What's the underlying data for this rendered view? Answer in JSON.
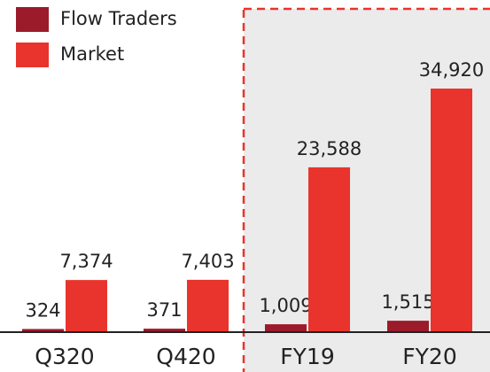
{
  "chart_data": {
    "type": "bar",
    "categories": [
      "Q320",
      "Q420",
      "FY19",
      "FY20"
    ],
    "series": [
      {
        "name": "Flow Traders",
        "color": "#9b1b2a",
        "values": [
          324,
          371,
          1009,
          1515
        ],
        "value_labels": [
          "324",
          "371",
          "1,009",
          "1,515"
        ]
      },
      {
        "name": "Market",
        "color": "#e8342c",
        "values": [
          7374,
          7403,
          23588,
          34920
        ],
        "value_labels": [
          "7,374",
          "7,403",
          "23,588",
          "34,920"
        ]
      }
    ]
  }
}
